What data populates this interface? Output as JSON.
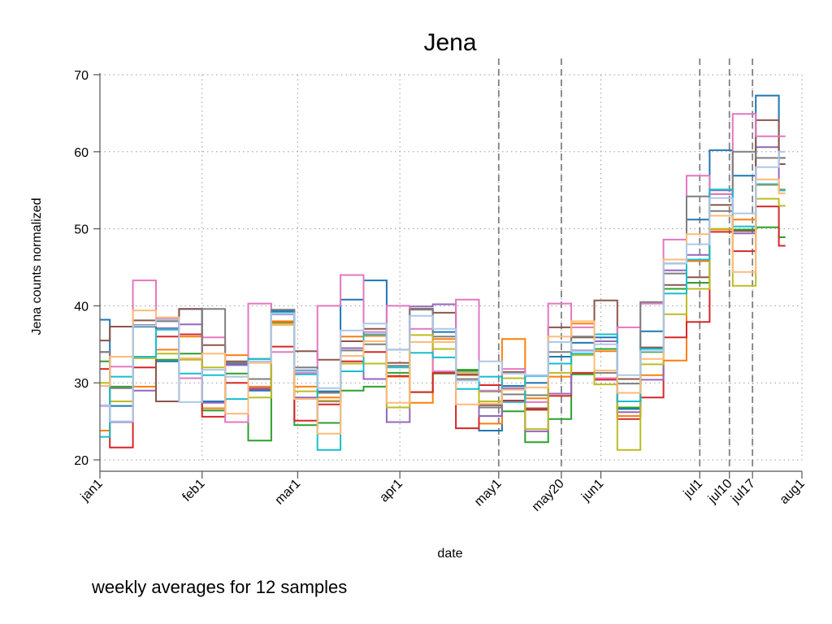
{
  "chart_data": {
    "type": "line",
    "title": "Jena",
    "xlabel": "date",
    "ylabel": "Jena counts normalized",
    "caption": "weekly averages for 12 samples",
    "grid": true,
    "xlim": [
      "2020-01-01",
      "2020-08-01"
    ],
    "ylim": [
      20,
      70
    ],
    "yticks": [
      20,
      30,
      40,
      50,
      60,
      70
    ],
    "xticks": [
      {
        "label": "jan1",
        "date": "2020-01-01"
      },
      {
        "label": "feb1",
        "date": "2020-02-01"
      },
      {
        "label": "mar1",
        "date": "2020-03-01"
      },
      {
        "label": "apr1",
        "date": "2020-04-01"
      },
      {
        "label": "may1",
        "date": "2020-05-01"
      },
      {
        "label": "may20",
        "date": "2020-05-20"
      },
      {
        "label": "jun1",
        "date": "2020-06-01"
      },
      {
        "label": "jul1",
        "date": "2020-07-01"
      },
      {
        "label": "jul10",
        "date": "2020-07-10"
      },
      {
        "label": "jul17",
        "date": "2020-07-17"
      },
      {
        "label": "aug1",
        "date": "2020-08-01"
      }
    ],
    "vlines": [
      "2020-05-01",
      "2020-05-20",
      "2020-07-01",
      "2020-07-10",
      "2020-07-17"
    ],
    "week_starts": [
      "2020-01-01",
      "2020-01-04",
      "2020-01-11",
      "2020-01-18",
      "2020-01-25",
      "2020-02-01",
      "2020-02-08",
      "2020-02-15",
      "2020-02-22",
      "2020-02-29",
      "2020-03-07",
      "2020-03-14",
      "2020-03-21",
      "2020-03-28",
      "2020-04-04",
      "2020-04-11",
      "2020-04-18",
      "2020-04-25",
      "2020-05-02",
      "2020-05-09",
      "2020-05-16",
      "2020-05-23",
      "2020-05-30",
      "2020-06-06",
      "2020-06-13",
      "2020-06-20",
      "2020-06-27",
      "2020-07-04",
      "2020-07-11",
      "2020-07-18",
      "2020-07-25"
    ],
    "x_end": "2020-07-27",
    "series": [
      {
        "color": "#1f77b4",
        "values": [
          38.2,
          27.0,
          37.3,
          32.8,
          39.6,
          27.6,
          32.5,
          29.0,
          39.3,
          31.6,
          28.9,
          40.8,
          43.3,
          34.3,
          39.6,
          36.6,
          31.5,
          23.8,
          29.6,
          30.0,
          33.4,
          35.2,
          35.9,
          26.6,
          36.7,
          45.5,
          51.2,
          60.2,
          56.9,
          67.3,
          59.2
        ]
      },
      {
        "color": "#ff7f0e",
        "values": [
          23.8,
          24.9,
          29.5,
          34.3,
          36.0,
          26.7,
          33.6,
          29.5,
          38.0,
          29.5,
          28.1,
          36.0,
          36.1,
          30.8,
          27.4,
          35.7,
          31.0,
          24.7,
          35.7,
          28.0,
          30.8,
          37.7,
          34.1,
          25.7,
          31.0,
          32.9,
          45.8,
          49.9,
          51.2,
          55.7,
          55.1
        ]
      },
      {
        "color": "#2ca02c",
        "values": [
          32.8,
          29.5,
          33.3,
          33.0,
          33.8,
          26.4,
          31.2,
          22.5,
          37.6,
          24.5,
          24.8,
          29.0,
          29.5,
          31.3,
          28.8,
          31.2,
          31.7,
          28.9,
          26.3,
          22.3,
          25.3,
          31.1,
          34.4,
          26.8,
          34.0,
          42.2,
          43.0,
          54.5,
          49.9,
          50.2,
          48.9
        ]
      },
      {
        "color": "#d62728",
        "values": [
          31.8,
          21.6,
          32.0,
          36.0,
          36.3,
          25.6,
          30.0,
          29.2,
          34.7,
          25.1,
          27.2,
          32.8,
          34.0,
          30.9,
          28.8,
          31.3,
          24.1,
          29.7,
          27.7,
          26.5,
          28.3,
          31.3,
          30.4,
          25.3,
          28.1,
          35.9,
          37.9,
          49.6,
          47.1,
          52.9,
          47.8
        ]
      },
      {
        "color": "#9467bd",
        "values": [
          34.0,
          24.9,
          29.0,
          37.1,
          37.6,
          27.4,
          32.3,
          29.3,
          38.9,
          28.1,
          27.6,
          34.5,
          30.5,
          24.9,
          39.9,
          40.2,
          31.1,
          25.7,
          29.3,
          23.7,
          28.6,
          34.2,
          35.4,
          26.2,
          30.4,
          44.6,
          46.6,
          55.0,
          49.4,
          60.6,
          55.0
        ]
      },
      {
        "color": "#8c564b",
        "values": [
          35.5,
          37.3,
          38.1,
          27.6,
          39.6,
          34.9,
          32.8,
          33.1,
          37.8,
          34.1,
          33.0,
          35.4,
          37.0,
          32.6,
          39.6,
          39.1,
          31.1,
          27.1,
          31.4,
          26.7,
          37.2,
          35.9,
          40.7,
          30.5,
          34.6,
          42.7,
          43.7,
          53.1,
          49.7,
          64.1,
          58.4
        ]
      },
      {
        "color": "#e377c2",
        "values": [
          27.0,
          32.1,
          43.3,
          38.4,
          30.6,
          35.9,
          24.9,
          40.3,
          34.0,
          31.3,
          40.0,
          44.0,
          36.6,
          40.0,
          37.0,
          31.5,
          40.8,
          29.0,
          31.8,
          27.5,
          40.3,
          37.2,
          30.6,
          37.2,
          40.3,
          48.6,
          56.9,
          54.5,
          64.9,
          62.0,
          62.0
        ]
      },
      {
        "color": "#7f7f7f",
        "values": [
          34.0,
          29.3,
          37.5,
          38.0,
          33.1,
          39.6,
          32.6,
          30.5,
          39.5,
          32.0,
          28.7,
          34.2,
          35.0,
          32.2,
          39.5,
          36.0,
          30.5,
          26.8,
          28.5,
          28.4,
          34.0,
          36.0,
          31.3,
          29.9,
          40.5,
          44.2,
          54.2,
          52.3,
          60.0,
          59.2,
          59.2
        ]
      },
      {
        "color": "#bcbd22",
        "values": [
          30.0,
          27.6,
          33.2,
          33.8,
          33.0,
          32.0,
          30.8,
          28.1,
          37.7,
          28.9,
          27.7,
          32.5,
          32.5,
          26.8,
          36.2,
          34.4,
          31.4,
          27.6,
          30.6,
          24.0,
          31.3,
          33.6,
          29.8,
          21.3,
          32.4,
          38.9,
          42.2,
          50.0,
          42.6,
          53.9,
          53.0
        ]
      },
      {
        "color": "#17becf",
        "values": [
          23.0,
          30.8,
          33.4,
          36.9,
          31.2,
          31.0,
          27.9,
          33.1,
          39.1,
          31.1,
          21.3,
          31.5,
          36.3,
          32.0,
          33.9,
          33.3,
          29.2,
          30.8,
          27.5,
          30.9,
          32.5,
          33.8,
          36.3,
          27.6,
          34.4,
          41.6,
          46.0,
          55.1,
          50.3,
          55.8,
          55.0
        ]
      },
      {
        "color": "#ffbb78",
        "values": [
          29.6,
          33.4,
          39.4,
          38.5,
          33.2,
          33.8,
          26.0,
          32.6,
          37.5,
          27.9,
          23.4,
          33.5,
          35.4,
          27.4,
          35.3,
          35.3,
          27.2,
          27.3,
          29.1,
          29.4,
          36.0,
          38.0,
          31.6,
          28.7,
          33.1,
          46.0,
          49.3,
          51.7,
          44.4,
          56.4,
          54.6
        ]
      },
      {
        "color": "#aec7e8",
        "values": [
          27.1,
          25.0,
          37.4,
          38.2,
          27.5,
          31.7,
          30.8,
          32.8,
          39.0,
          31.7,
          29.3,
          36.8,
          37.7,
          34.3,
          38.7,
          37.0,
          30.3,
          32.8,
          31.2,
          31.0,
          35.3,
          34.1,
          35.0,
          31.0,
          34.1,
          45.5,
          48.0,
          54.0,
          52.0,
          58.0,
          60.0
        ]
      }
    ]
  }
}
